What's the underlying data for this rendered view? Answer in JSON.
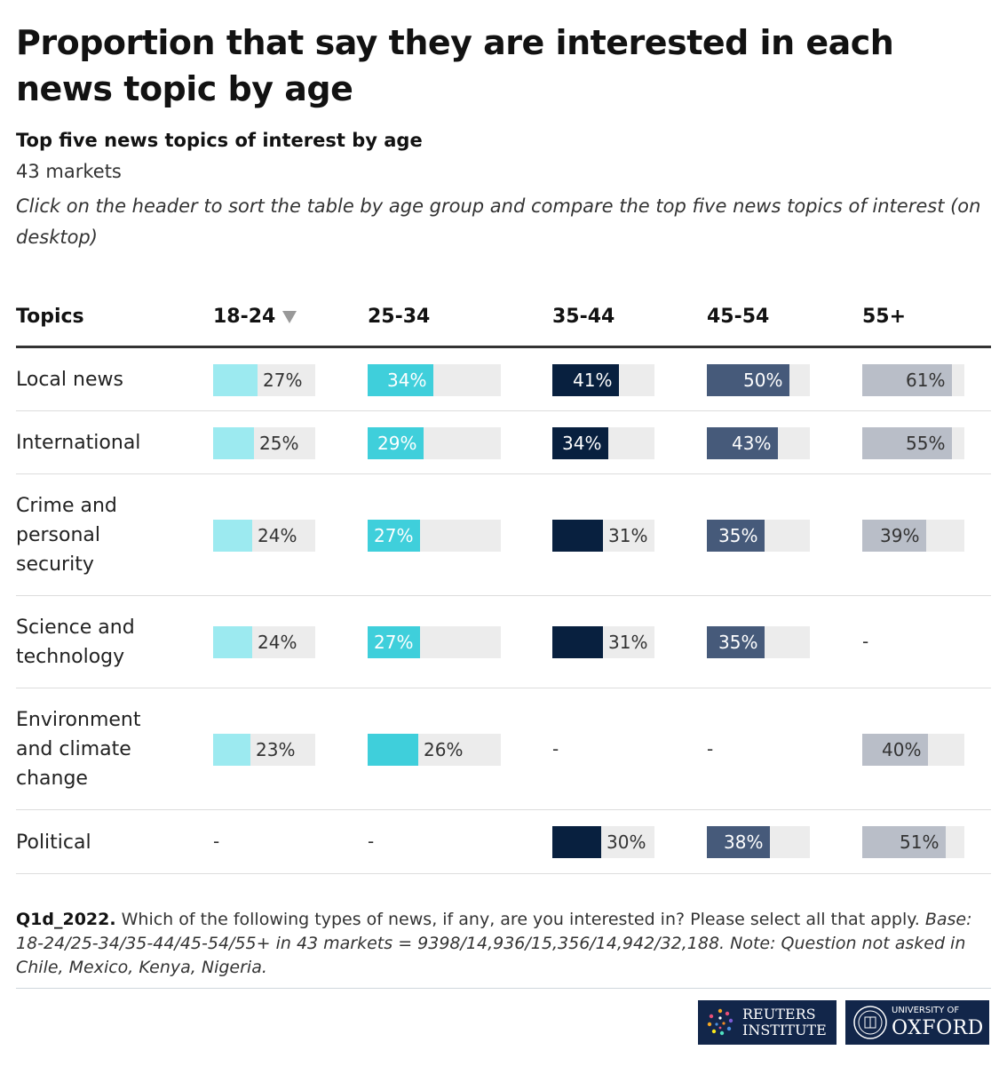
{
  "title": "Proportion that say they are interested in each news topic by age",
  "subtitle": "Top five news topics of interest by age",
  "markets": "43 markets",
  "instructions": "Click on the header to sort the table by age group and compare the top five news topics of interest (on desktop)",
  "chart_data": {
    "type": "table",
    "columns": [
      "Topics",
      "18-24",
      "25-34",
      "35-44",
      "45-54",
      "55+"
    ],
    "sorted_by": "18-24",
    "value_range": [
      0,
      100
    ],
    "colors": {
      "18-24": "#9ceaf0",
      "25-34": "#3fcfdb",
      "35-44": "#08203f",
      "45-54": "#465a7a",
      "55+": "#b9bec8",
      "track": "#ececec"
    },
    "rows": [
      {
        "topic": "Local news",
        "values": [
          27,
          34,
          41,
          50,
          61
        ],
        "labels": [
          "27%",
          "34%",
          "41%",
          "50%",
          "61%"
        ]
      },
      {
        "topic": "International",
        "values": [
          25,
          29,
          34,
          43,
          55
        ],
        "labels": [
          "25%",
          "29%",
          "34%",
          "43%",
          "55%"
        ]
      },
      {
        "topic": "Crime and personal security",
        "values": [
          24,
          27,
          31,
          35,
          39
        ],
        "labels": [
          "24%",
          "27%",
          "31%",
          "35%",
          "39%"
        ]
      },
      {
        "topic": "Science and technology",
        "values": [
          24,
          27,
          31,
          35,
          null
        ],
        "labels": [
          "24%",
          "27%",
          "31%",
          "35%",
          "-"
        ]
      },
      {
        "topic": "Environment and climate change",
        "values": [
          23,
          26,
          null,
          null,
          40
        ],
        "labels": [
          "23%",
          "26%",
          "-",
          "-",
          "40%"
        ]
      },
      {
        "topic": "Political",
        "values": [
          null,
          null,
          30,
          38,
          51
        ],
        "labels": [
          "-",
          "-",
          "30%",
          "38%",
          "51%"
        ]
      }
    ]
  },
  "note": {
    "question_id": "Q1d_2022.",
    "question": " Which of the following types of news, if any, are you interested in? Please select all that apply. ",
    "base": "Base: 18-24/25-34/35-44/45-54/55+ in 43 markets = 9398/14,936/15,356/14,942/32,188. Note: Question not asked in Chile, Mexico, Kenya, Nigeria."
  },
  "logos": {
    "reuters_line1": "REUTERS",
    "reuters_line2": "INSTITUTE",
    "oxford_small": "UNIVERSITY OF",
    "oxford_big": "OXFORD"
  }
}
